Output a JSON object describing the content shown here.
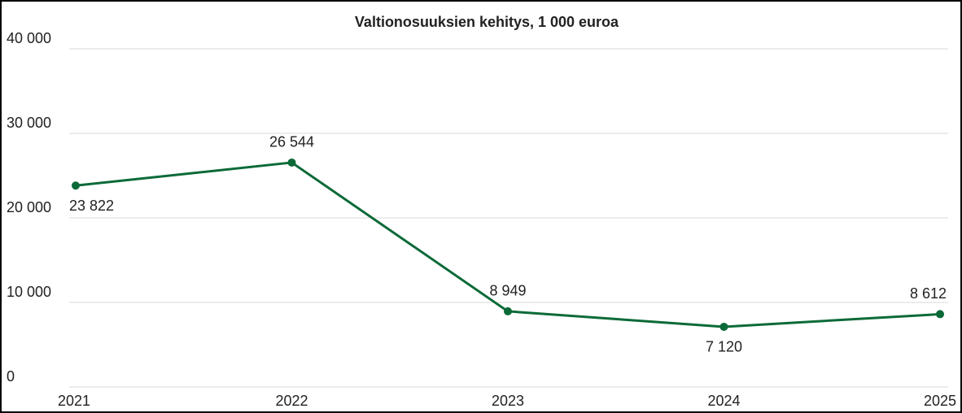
{
  "chart_data": {
    "type": "line",
    "title": "Valtionosuuksien kehitys, 1 000 euroa",
    "categories": [
      "2021",
      "2022",
      "2023",
      "2024",
      "2025"
    ],
    "series": [
      {
        "name": null,
        "color": "#0b6a38",
        "values": [
          23822,
          26544,
          8949,
          7120,
          8612
        ],
        "value_labels": [
          "23 822",
          "26 544",
          "8 949",
          "7 120",
          "8 612"
        ]
      }
    ],
    "ylim": [
      0,
      40000
    ],
    "yticks": [
      0,
      {
        "value": 10000,
        "label": "10 000"
      },
      {
        "value": 20000,
        "label": "20 000"
      },
      {
        "value": 30000,
        "label": "30 000"
      },
      {
        "value": 40000,
        "label": "40 000"
      }
    ],
    "grid": true
  }
}
